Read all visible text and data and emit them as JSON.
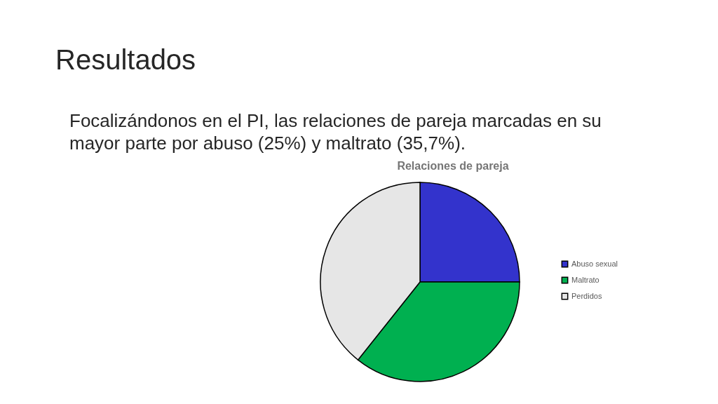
{
  "chart_data": {
    "type": "pie",
    "title": "Relaciones de pareja",
    "annotations": [
      "Resultados",
      "Focalizándonos en el PI, las relaciones de pareja marcadas en su mayor parte por abuso (25%) y maltrato (35,7%)."
    ],
    "categories": [
      "Abuso sexual",
      "Maltrato",
      "Perdidos"
    ],
    "values": [
      25,
      35.7,
      39.3
    ],
    "colors": [
      "#3333cc",
      "#00b050",
      "#e6e6e6"
    ],
    "legend": "right"
  }
}
